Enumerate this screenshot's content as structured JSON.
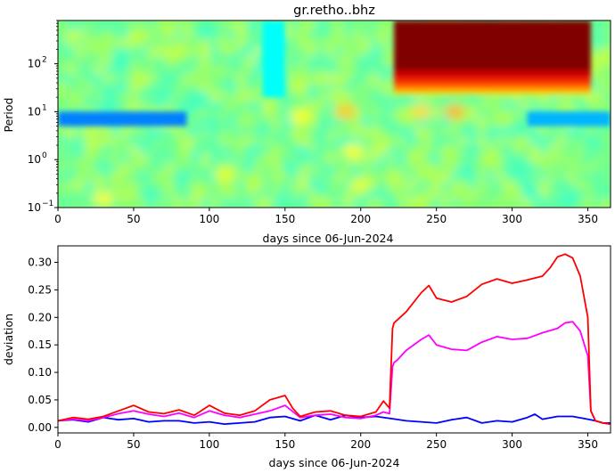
{
  "chart_data": [
    {
      "type": "heatmap",
      "title": "gr.retho..bhz",
      "xlabel": "days since 06-Jun-2024",
      "ylabel": "Period",
      "xlim": [
        0,
        365
      ],
      "ylim": [
        0.1,
        800
      ],
      "yscale": "log",
      "colormap": "jet",
      "x_ticks": [
        "0",
        "50",
        "100",
        "150",
        "200",
        "250",
        "300",
        "350"
      ],
      "y_ticks": [
        "10",
        "10",
        "10",
        "10"
      ],
      "y_tick_exponents": [
        "−1",
        "0",
        "1",
        "2"
      ],
      "grid": false,
      "regions": [
        {
          "feature": "low-value band",
          "x": [
            0,
            85
          ],
          "period": [
            5,
            10
          ],
          "level": 0.25
        },
        {
          "feature": "low-value band",
          "x": [
            310,
            365
          ],
          "period": [
            5,
            10
          ],
          "level": 0.3
        },
        {
          "feature": "low-value column",
          "x": [
            135,
            150
          ],
          "period": [
            20,
            800
          ],
          "level": 0.38
        },
        {
          "feature": "saturated high block",
          "x": [
            222,
            352
          ],
          "period": [
            50,
            800
          ],
          "level": 1.0
        }
      ]
    },
    {
      "type": "line",
      "xlabel": "days since 06-Jun-2024",
      "ylabel": "deviation",
      "xlim": [
        0,
        365
      ],
      "ylim": [
        -0.01,
        0.33
      ],
      "x_ticks": [
        "0",
        "50",
        "100",
        "150",
        "200",
        "250",
        "300",
        "350"
      ],
      "y_ticks": [
        "0.00",
        "0.05",
        "0.10",
        "0.15",
        "0.20",
        "0.25",
        "0.30"
      ],
      "grid": false,
      "series": [
        {
          "color": "#ff0000",
          "x": [
            0,
            10,
            20,
            30,
            40,
            50,
            60,
            70,
            80,
            90,
            100,
            110,
            120,
            130,
            140,
            150,
            155,
            160,
            170,
            180,
            190,
            200,
            210,
            215,
            219,
            221,
            222,
            224,
            230,
            240,
            245,
            250,
            260,
            270,
            280,
            290,
            300,
            310,
            320,
            325,
            330,
            335,
            340,
            345,
            350,
            352,
            355,
            360,
            365
          ],
          "y": [
            0.012,
            0.018,
            0.015,
            0.02,
            0.03,
            0.04,
            0.028,
            0.025,
            0.032,
            0.022,
            0.04,
            0.026,
            0.022,
            0.03,
            0.05,
            0.058,
            0.035,
            0.02,
            0.028,
            0.03,
            0.022,
            0.02,
            0.028,
            0.048,
            0.035,
            0.18,
            0.19,
            0.195,
            0.21,
            0.245,
            0.258,
            0.235,
            0.228,
            0.238,
            0.26,
            0.27,
            0.262,
            0.268,
            0.275,
            0.29,
            0.31,
            0.315,
            0.308,
            0.275,
            0.2,
            0.03,
            0.012,
            0.008,
            0.006
          ]
        },
        {
          "color": "#ff00ff",
          "x": [
            0,
            10,
            20,
            30,
            40,
            50,
            60,
            70,
            80,
            90,
            100,
            110,
            120,
            130,
            140,
            150,
            160,
            170,
            180,
            190,
            200,
            210,
            215,
            219,
            221,
            222,
            224,
            230,
            240,
            245,
            250,
            260,
            270,
            280,
            290,
            300,
            310,
            320,
            330,
            335,
            340,
            345,
            350,
            352,
            355,
            360,
            365
          ],
          "y": [
            0.012,
            0.015,
            0.012,
            0.018,
            0.025,
            0.03,
            0.024,
            0.02,
            0.026,
            0.018,
            0.03,
            0.022,
            0.018,
            0.024,
            0.03,
            0.04,
            0.018,
            0.022,
            0.024,
            0.018,
            0.016,
            0.022,
            0.028,
            0.025,
            0.11,
            0.118,
            0.122,
            0.14,
            0.16,
            0.168,
            0.15,
            0.142,
            0.14,
            0.155,
            0.165,
            0.16,
            0.162,
            0.172,
            0.18,
            0.19,
            0.192,
            0.175,
            0.13,
            0.03,
            0.012,
            0.008,
            0.006
          ]
        },
        {
          "color": "#0000ff",
          "x": [
            0,
            10,
            20,
            30,
            40,
            50,
            60,
            70,
            80,
            90,
            100,
            110,
            120,
            130,
            140,
            150,
            160,
            170,
            180,
            190,
            200,
            210,
            220,
            230,
            240,
            250,
            260,
            270,
            280,
            290,
            300,
            310,
            315,
            320,
            330,
            340,
            350,
            355,
            360,
            365
          ],
          "y": [
            0.012,
            0.014,
            0.01,
            0.018,
            0.014,
            0.016,
            0.01,
            0.012,
            0.012,
            0.008,
            0.01,
            0.006,
            0.008,
            0.01,
            0.018,
            0.02,
            0.012,
            0.022,
            0.014,
            0.022,
            0.018,
            0.02,
            0.016,
            0.012,
            0.01,
            0.008,
            0.014,
            0.018,
            0.008,
            0.012,
            0.01,
            0.018,
            0.024,
            0.015,
            0.02,
            0.02,
            0.015,
            0.012,
            0.008,
            0.008
          ]
        }
      ]
    }
  ]
}
